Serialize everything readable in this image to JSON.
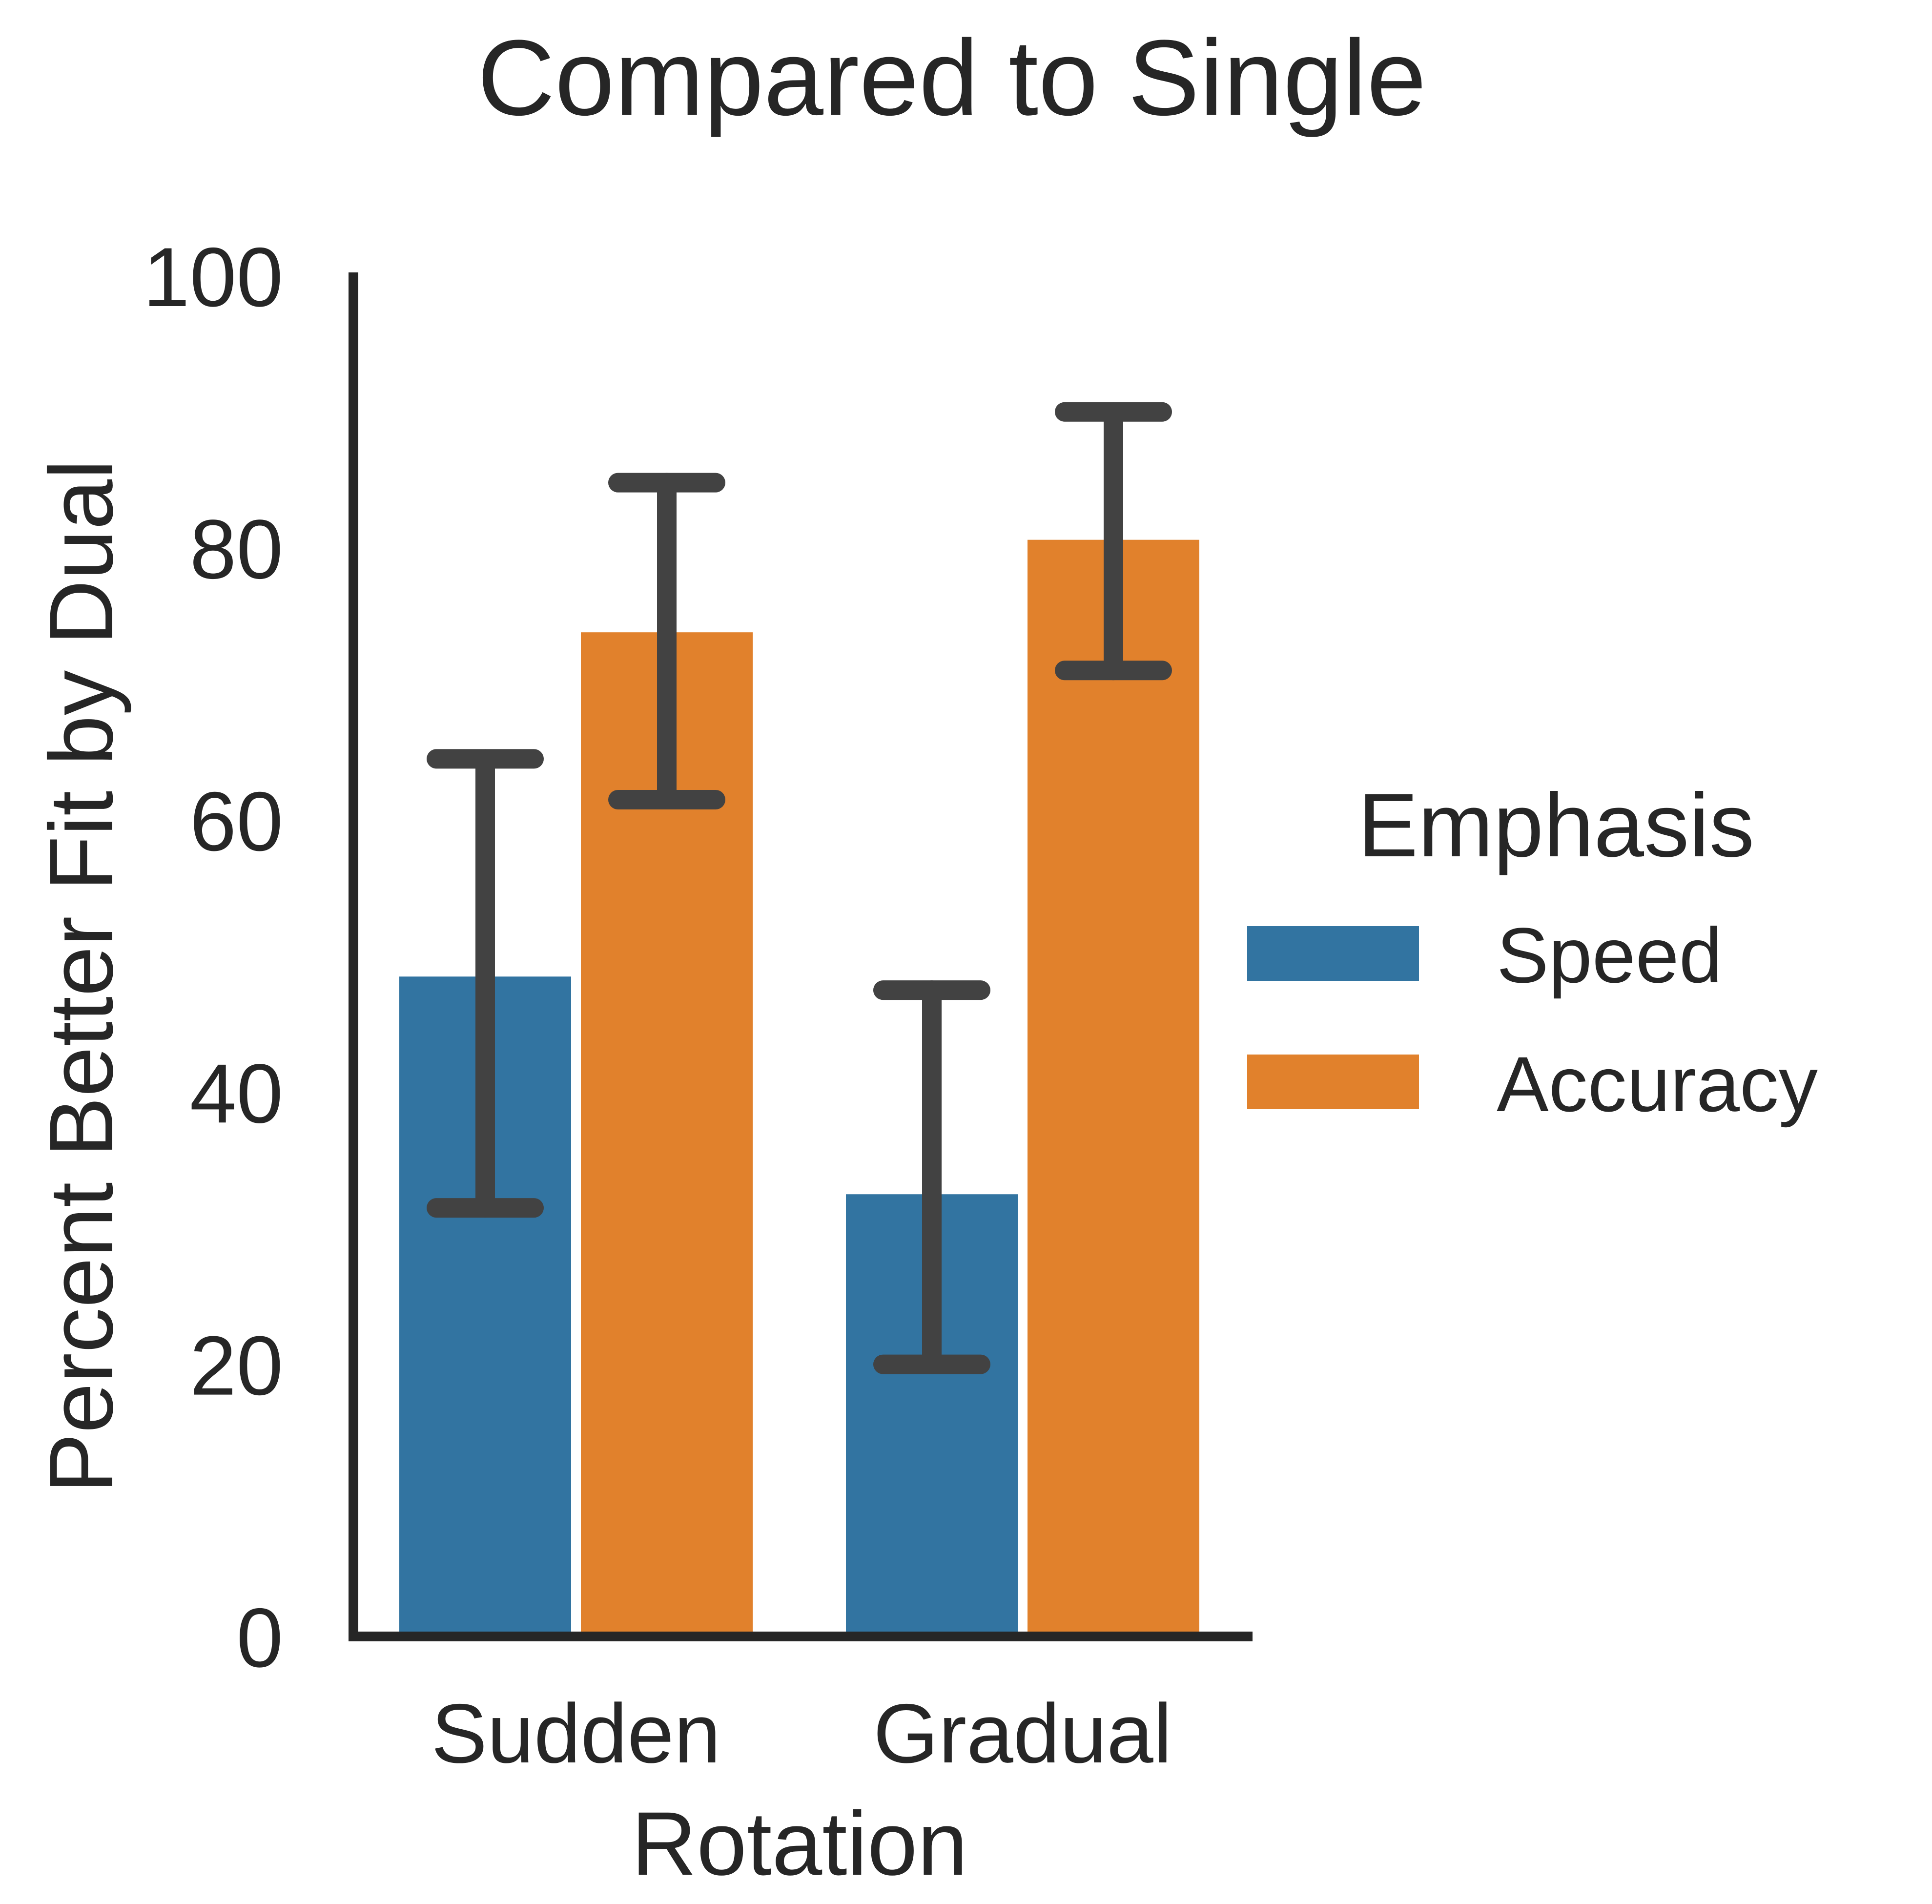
{
  "chart_data": {
    "type": "bar",
    "title": "Compared to Single",
    "xlabel": "Rotation",
    "ylabel": "Percent Better Fit by Dual",
    "categories": [
      "Sudden",
      "Gradual"
    ],
    "ylim": [
      0,
      100
    ],
    "yticks": [
      "0",
      "20",
      "40",
      "60",
      "80",
      "100"
    ],
    "grid": false,
    "legend": {
      "title": "Emphasis",
      "placement": "center-right",
      "entries": [
        "Speed",
        "Accuracy"
      ]
    },
    "series": [
      {
        "name": "Speed",
        "color": "#3274a1",
        "values": [
          48.5,
          32.5
        ],
        "error_low": [
          31.5,
          20.0
        ],
        "error_high": [
          64.5,
          47.5
        ]
      },
      {
        "name": "Accuracy",
        "color": "#e1812c",
        "values": [
          73.8,
          80.6
        ],
        "error_low": [
          61.5,
          71.0
        ],
        "error_high": [
          84.8,
          90.0
        ]
      }
    ],
    "error_bar_color": "#424242"
  }
}
